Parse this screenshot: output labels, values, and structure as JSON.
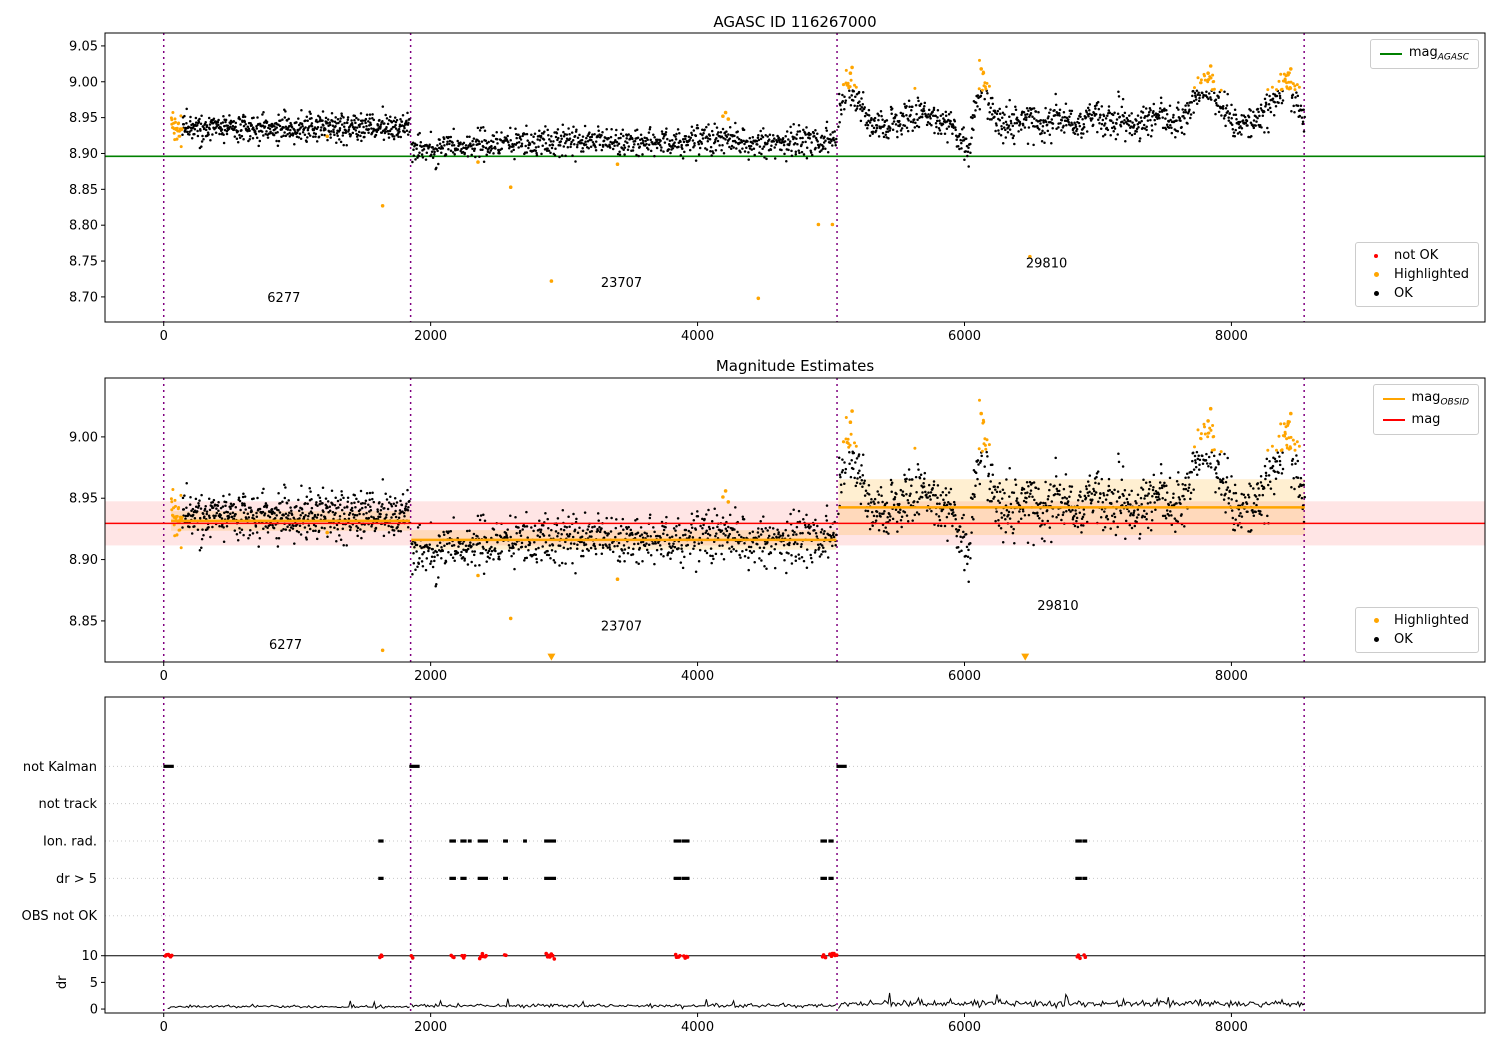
{
  "chart_data": [
    {
      "type": "scatter",
      "title": "AGASC ID 116267000",
      "xlim": [
        -440,
        9900
      ],
      "ylim": [
        8.665,
        9.068
      ],
      "xticks": {
        "values": [
          0,
          2000,
          4000,
          6000,
          8000
        ],
        "labels": [
          "0",
          "2000",
          "4000",
          "6000",
          "8000"
        ]
      },
      "yticks": {
        "values": [
          8.7,
          8.75,
          8.8,
          8.85,
          8.9,
          8.95,
          9.0,
          9.05
        ],
        "labels": [
          "8.70",
          "8.75",
          "8.80",
          "8.85",
          "8.90",
          "8.95",
          "9.00",
          "9.05"
        ]
      },
      "colors": {
        "ok": "#000000",
        "highlighted": "#ffa500",
        "not_ok": "#ff0000",
        "agasc_line": "#008000",
        "vline": "#800080"
      },
      "vlines": [
        0,
        1850,
        5045,
        8545
      ],
      "agasc_mag_line": {
        "y": 8.896
      },
      "segments": [
        {
          "x0": 55,
          "x1": 1845,
          "n": 620,
          "sigma": 0.0095,
          "mean": [
            [
              55,
              8.94
            ],
            [
              150,
              8.936
            ],
            [
              300,
              8.934
            ],
            [
              500,
              8.936
            ],
            [
              700,
              8.935
            ],
            [
              900,
              8.934
            ],
            [
              1100,
              8.936
            ],
            [
              1300,
              8.935
            ],
            [
              1500,
              8.937
            ],
            [
              1700,
              8.936
            ],
            [
              1845,
              8.938
            ]
          ]
        },
        {
          "x0": 1855,
          "x1": 5040,
          "n": 860,
          "sigma": 0.0095,
          "mean": [
            [
              1855,
              8.908
            ],
            [
              2000,
              8.906
            ],
            [
              2150,
              8.91
            ],
            [
              2300,
              8.913
            ],
            [
              2450,
              8.912
            ],
            [
              2600,
              8.913
            ],
            [
              2750,
              8.916
            ],
            [
              2900,
              8.915
            ],
            [
              3050,
              8.917
            ],
            [
              3200,
              8.918
            ],
            [
              3350,
              8.915
            ],
            [
              3500,
              8.914
            ],
            [
              3650,
              8.916
            ],
            [
              3800,
              8.913
            ],
            [
              3950,
              8.917
            ],
            [
              4100,
              8.921
            ],
            [
              4250,
              8.919
            ],
            [
              4400,
              8.917
            ],
            [
              4550,
              8.915
            ],
            [
              4700,
              8.916
            ],
            [
              4850,
              8.917
            ],
            [
              5040,
              8.919
            ]
          ]
        },
        {
          "x0": 5055,
          "x1": 8550,
          "n": 1000,
          "sigma": 0.0115,
          "mean": [
            [
              5055,
              8.955
            ],
            [
              5100,
              8.985
            ],
            [
              5150,
              8.998
            ],
            [
              5200,
              8.975
            ],
            [
              5280,
              8.945
            ],
            [
              5400,
              8.935
            ],
            [
              5500,
              8.945
            ],
            [
              5600,
              8.952
            ],
            [
              5700,
              8.958
            ],
            [
              5800,
              8.945
            ],
            [
              5900,
              8.938
            ],
            [
              5980,
              8.915
            ],
            [
              6030,
              8.9
            ],
            [
              6060,
              8.945
            ],
            [
              6100,
              8.985
            ],
            [
              6150,
              8.995
            ],
            [
              6200,
              8.96
            ],
            [
              6280,
              8.94
            ],
            [
              6380,
              8.945
            ],
            [
              6480,
              8.952
            ],
            [
              6580,
              8.938
            ],
            [
              6680,
              8.955
            ],
            [
              6780,
              8.94
            ],
            [
              6880,
              8.942
            ],
            [
              6980,
              8.958
            ],
            [
              7080,
              8.94
            ],
            [
              7180,
              8.952
            ],
            [
              7280,
              8.935
            ],
            [
              7380,
              8.945
            ],
            [
              7480,
              8.958
            ],
            [
              7580,
              8.94
            ],
            [
              7680,
              8.96
            ],
            [
              7780,
              8.995
            ],
            [
              7830,
              9.0
            ],
            [
              7900,
              8.975
            ],
            [
              7980,
              8.95
            ],
            [
              8060,
              8.938
            ],
            [
              8140,
              8.942
            ],
            [
              8220,
              8.955
            ],
            [
              8300,
              8.97
            ],
            [
              8380,
              8.995
            ],
            [
              8430,
              9.002
            ],
            [
              8480,
              8.975
            ],
            [
              8550,
              8.95
            ]
          ]
        }
      ],
      "highlight": {
        "y_above": 8.988,
        "x_ranges": [
          [
            55,
            140
          ]
        ]
      },
      "outliers": [
        {
          "x": 1225,
          "y": 8.924
        },
        {
          "x": 1640,
          "y": 8.827
        },
        {
          "x": 2355,
          "y": 8.888
        },
        {
          "x": 2600,
          "y": 8.853
        },
        {
          "x": 2905,
          "y": 8.722
        },
        {
          "x": 3400,
          "y": 8.885
        },
        {
          "x": 4190,
          "y": 8.952
        },
        {
          "x": 4210,
          "y": 8.957
        },
        {
          "x": 4230,
          "y": 8.948
        },
        {
          "x": 4455,
          "y": 8.698
        },
        {
          "x": 4905,
          "y": 8.801
        },
        {
          "x": 5010,
          "y": 8.801
        },
        {
          "x": 6490,
          "y": 8.756
        },
        {
          "x": 5145,
          "y": 9.012
        },
        {
          "x": 5158,
          "y": 9.02
        },
        {
          "x": 6125,
          "y": 9.018
        },
        {
          "x": 7825,
          "y": 9.012
        },
        {
          "x": 7845,
          "y": 9.022
        },
        {
          "x": 8425,
          "y": 9.01
        },
        {
          "x": 8445,
          "y": 9.018
        }
      ],
      "annotations": [
        {
          "text": "6277",
          "x": 900,
          "y": 8.693
        },
        {
          "text": "23707",
          "x": 3430,
          "y": 8.714
        },
        {
          "text": "29810",
          "x": 6615,
          "y": 8.741
        }
      ],
      "legend_lines": [
        {
          "label_pre": "mag",
          "label_sub": "AGASC",
          "color": "#008000"
        }
      ],
      "legend_points": [
        {
          "label": "not OK",
          "color": "#ff0000"
        },
        {
          "label": "Highlighted",
          "color": "#ffa500"
        },
        {
          "label": "OK",
          "color": "#000000"
        }
      ]
    },
    {
      "type": "scatter",
      "title": "Magnitude Estimates",
      "xlim": [
        -440,
        9900
      ],
      "ylim": [
        8.8165,
        9.048
      ],
      "xticks": {
        "values": [
          0,
          2000,
          4000,
          6000,
          8000
        ],
        "labels": [
          "0",
          "2000",
          "4000",
          "6000",
          "8000"
        ]
      },
      "yticks": {
        "values": [
          8.85,
          8.9,
          8.95,
          9.0
        ],
        "labels": [
          "8.85",
          "8.90",
          "8.95",
          "9.00"
        ]
      },
      "colors": {
        "ok": "#000000",
        "highlighted": "#ffa500",
        "mag_line": "#ff0000",
        "obsid_line": "#ffa500",
        "vline": "#800080"
      },
      "vlines": [
        0,
        1850,
        5045,
        8545
      ],
      "mag_line": {
        "y": 8.9295,
        "band": [
          8.9115,
          8.9475
        ]
      },
      "obsid_lines": [
        {
          "x0": 55,
          "x1": 1845,
          "y": 8.9315,
          "band": [
            8.9235,
            8.9395
          ]
        },
        {
          "x0": 1855,
          "x1": 5040,
          "y": 8.916,
          "band": [
            8.908,
            8.924
          ]
        },
        {
          "x0": 5055,
          "x1": 8550,
          "y": 8.9425,
          "band": [
            8.92,
            8.9655
          ]
        }
      ],
      "highlight": {
        "y_above": 8.988,
        "x_ranges": [
          [
            55,
            140
          ]
        ]
      },
      "outliers": [
        {
          "x": 1225,
          "y": 8.922
        },
        {
          "x": 1640,
          "y": 8.826
        },
        {
          "x": 2355,
          "y": 8.887
        },
        {
          "x": 2600,
          "y": 8.852
        },
        {
          "x": 3400,
          "y": 8.884
        },
        {
          "x": 4190,
          "y": 8.951
        },
        {
          "x": 4210,
          "y": 8.956
        },
        {
          "x": 4230,
          "y": 8.947
        },
        {
          "x": 5145,
          "y": 9.012
        },
        {
          "x": 5158,
          "y": 9.021
        },
        {
          "x": 6125,
          "y": 9.019
        },
        {
          "x": 7825,
          "y": 9.013
        },
        {
          "x": 7845,
          "y": 9.023
        },
        {
          "x": 8425,
          "y": 9.011
        },
        {
          "x": 8445,
          "y": 9.019
        }
      ],
      "clip_markers": [
        {
          "x": 2905,
          "y": 8.8205,
          "shape": "triangle-down"
        },
        {
          "x": 6455,
          "y": 8.8205,
          "shape": "triangle-down"
        }
      ],
      "annotations": [
        {
          "text": "6277",
          "x": 913,
          "y": 8.827
        },
        {
          "text": "23707",
          "x": 3430,
          "y": 8.842
        },
        {
          "text": "29810",
          "x": 6700,
          "y": 8.859
        }
      ],
      "legend_lines": [
        {
          "label_pre": "mag",
          "label_sub": "OBSID",
          "color": "#ffa500"
        },
        {
          "label_pre": "mag",
          "label_sub": "",
          "color": "#ff0000"
        }
      ],
      "legend_points": [
        {
          "label": "Highlighted",
          "color": "#ffa500"
        },
        {
          "label": "OK",
          "color": "#000000"
        }
      ],
      "segments_ref": 0
    },
    {
      "type": "flags",
      "xlim": [
        -440,
        9900
      ],
      "ylim": [
        -0.74,
        58.5
      ],
      "xticks": {
        "values": [
          0,
          2000,
          4000,
          6000,
          8000
        ],
        "labels": [
          "0",
          "2000",
          "4000",
          "6000",
          "8000"
        ]
      },
      "yticks": {
        "values": [
          0,
          5,
          10
        ],
        "labels": [
          "0",
          "5",
          "10"
        ]
      },
      "ylabel": "dr",
      "colors": {
        "marks": "#000000",
        "red_points": "#ff0000",
        "vline": "#800080",
        "grid": "#c8c8c8"
      },
      "vlines": [
        0,
        1850,
        5045,
        8545
      ],
      "threshold_line": {
        "y": 10
      },
      "flag_rows": [
        {
          "label": "not Kalman",
          "level": 45.5,
          "mark_ranges": [
            [
              5,
              68
            ],
            [
              1848,
              1910
            ],
            [
              5048,
              5110
            ]
          ]
        },
        {
          "label": "not track",
          "level": 38.5,
          "mark_ranges": []
        },
        {
          "label": "Ion. rad.",
          "level": 31.5,
          "mark_ranges": [
            [
              1615,
              1640
            ],
            [
              2148,
              2182
            ],
            [
              2230,
              2262
            ],
            [
              2286,
              2300
            ],
            [
              2360,
              2422
            ],
            [
              2550,
              2572
            ],
            [
              2700,
              2714
            ],
            [
              2858,
              2932
            ],
            [
              3828,
              3872
            ],
            [
              3890,
              3932
            ],
            [
              4928,
              4962
            ],
            [
              4988,
              5012
            ],
            [
              6838,
              6872
            ],
            [
              6890,
              6912
            ]
          ]
        },
        {
          "label": "dr > 5",
          "level": 24.5,
          "mark_ranges": [
            [
              1615,
              1640
            ],
            [
              2148,
              2182
            ],
            [
              2230,
              2262
            ],
            [
              2360,
              2422
            ],
            [
              2550,
              2572
            ],
            [
              2858,
              2932
            ],
            [
              3828,
              3872
            ],
            [
              3890,
              3932
            ],
            [
              4928,
              4962
            ],
            [
              4988,
              5012
            ],
            [
              6838,
              6872
            ],
            [
              6890,
              6912
            ]
          ]
        },
        {
          "label": "OBS not OK",
          "level": 17.5,
          "mark_ranges": []
        }
      ],
      "red_points": {
        "y": 10,
        "x_ranges": [
          [
            8,
            65
          ],
          [
            1615,
            1640
          ],
          [
            1848,
            1872
          ],
          [
            2148,
            2182
          ],
          [
            2230,
            2262
          ],
          [
            2360,
            2422
          ],
          [
            2550,
            2572
          ],
          [
            2858,
            2932
          ],
          [
            3828,
            3872
          ],
          [
            3890,
            3932
          ],
          [
            4928,
            4962
          ],
          [
            4988,
            5045
          ],
          [
            6838,
            6872
          ],
          [
            6890,
            6912
          ]
        ]
      },
      "dr_trace": {
        "step": 12,
        "segments": [
          {
            "x0": 30,
            "x1": 1845,
            "base": 0.45,
            "sigma": 0.13,
            "p_spike": 0.01,
            "amp": 0.8
          },
          {
            "x0": 1858,
            "x1": 5040,
            "base": 0.62,
            "sigma": 0.18,
            "p_spike": 0.015,
            "amp": 1.0
          },
          {
            "x0": 5055,
            "x1": 8550,
            "base": 1.0,
            "sigma": 0.3,
            "p_spike": 0.04,
            "amp": 1.2
          }
        ]
      }
    }
  ]
}
